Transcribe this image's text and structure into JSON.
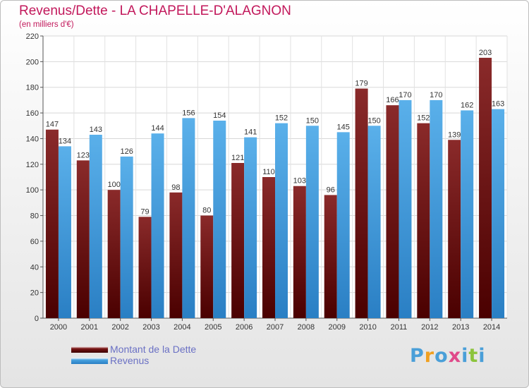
{
  "title": "Revenus/Dette - LA CHAPELLE-D'ALAGNON",
  "subtitle": "(en milliers d'€)",
  "legend": [
    {
      "label": "Montant de la Dette",
      "color": "#7a1515"
    },
    {
      "label": "Revenus",
      "color": "#4aa3e0"
    }
  ],
  "logo": {
    "letters": [
      "P",
      "r",
      "o",
      "x",
      "i",
      "t",
      "i"
    ],
    "colors": [
      "#4a9fd8",
      "#f0a020",
      "#4a9fd8",
      "#e04a8a",
      "#4a9fd8",
      "#8cc43c",
      "#4a9fd8"
    ]
  },
  "chart_data": {
    "type": "bar",
    "title": "Revenus/Dette - LA CHAPELLE-D'ALAGNON",
    "ylabel": "(en milliers d'€)",
    "ylim": [
      0,
      220
    ],
    "yticks": [
      0,
      20,
      40,
      60,
      80,
      100,
      120,
      140,
      160,
      180,
      200,
      220
    ],
    "categories": [
      "2000",
      "2001",
      "2002",
      "2003",
      "2004",
      "2005",
      "2006",
      "2007",
      "2008",
      "2009",
      "2010",
      "2011",
      "2012",
      "2013",
      "2014"
    ],
    "series": [
      {
        "name": "Montant de la Dette",
        "color": "#7a1515",
        "values": [
          147,
          123,
          100,
          79,
          98,
          80,
          121,
          110,
          103,
          96,
          179,
          166,
          152,
          139,
          203
        ]
      },
      {
        "name": "Revenus",
        "color": "#4aa3e0",
        "values": [
          134,
          143,
          126,
          144,
          156,
          154,
          141,
          152,
          150,
          145,
          150,
          170,
          170,
          162,
          163
        ]
      }
    ],
    "grid": true,
    "legend_position": "bottom-left"
  }
}
